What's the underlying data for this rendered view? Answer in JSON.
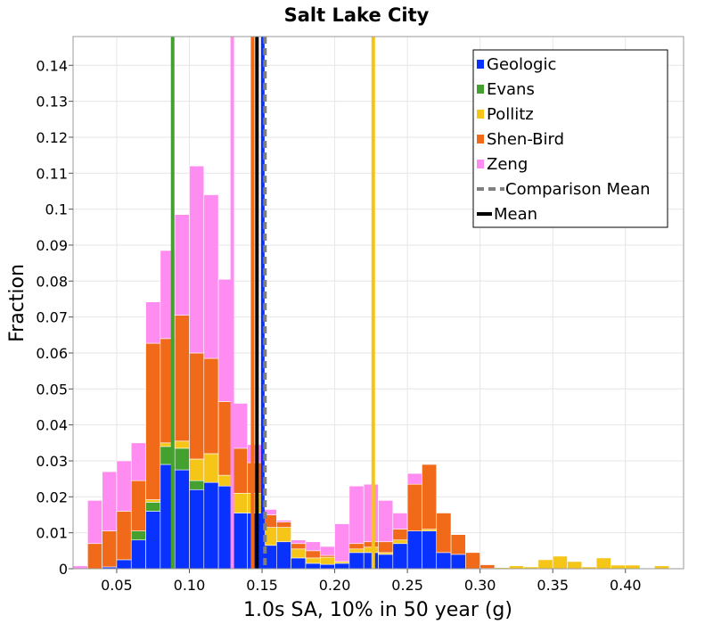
{
  "chart_data": {
    "type": "bar",
    "stacked": true,
    "title": "Salt Lake City",
    "xlabel": "1.0s SA, 10% in 50 year (g)",
    "ylabel": "Fraction",
    "xlim": [
      0.02,
      0.44
    ],
    "ylim": [
      0,
      0.148
    ],
    "grid": true,
    "legend_position": "top-right",
    "bin_width": 0.01,
    "x_ticks": [
      0.05,
      0.1,
      0.15,
      0.2,
      0.25,
      0.3,
      0.35,
      0.4
    ],
    "x_tick_labels": [
      "0.05",
      "0.10",
      "0.15",
      "0.20",
      "0.25",
      "0.30",
      "0.35",
      "0.40"
    ],
    "y_ticks": [
      0,
      0.01,
      0.02,
      0.03,
      0.04,
      0.05,
      0.06,
      0.07,
      0.08,
      0.09,
      0.1,
      0.11,
      0.12,
      0.13,
      0.14
    ],
    "y_tick_labels": [
      "0",
      "0.01",
      "0.02",
      "0.03",
      "0.04",
      "0.05",
      "0.06",
      "0.07",
      "0.08",
      "0.09",
      "0.1",
      "0.11",
      "0.12",
      "0.13",
      "0.14"
    ],
    "x": [
      0.025,
      0.035,
      0.045,
      0.055,
      0.065,
      0.075,
      0.085,
      0.095,
      0.105,
      0.115,
      0.125,
      0.135,
      0.145,
      0.155,
      0.165,
      0.175,
      0.185,
      0.195,
      0.205,
      0.215,
      0.225,
      0.235,
      0.245,
      0.255,
      0.265,
      0.275,
      0.285,
      0.295,
      0.305,
      0.315,
      0.325,
      0.335,
      0.345,
      0.355,
      0.365,
      0.375,
      0.385,
      0.395,
      0.405,
      0.415,
      0.425,
      0.435
    ],
    "series": [
      {
        "name": "Geologic",
        "color": "#0a32ff",
        "values": [
          0,
          0,
          0.0005,
          0.0025,
          0.008,
          0.016,
          0.029,
          0.0275,
          0.022,
          0.024,
          0.023,
          0.0155,
          0.0155,
          0.0065,
          0.0075,
          0.003,
          0.0015,
          0.0012,
          0.0015,
          0.0045,
          0.0045,
          0.004,
          0.007,
          0.0105,
          0.0105,
          0.0045,
          0.004,
          0,
          0,
          0,
          0,
          0,
          0,
          0,
          0,
          0,
          0,
          0,
          0,
          0,
          0,
          0
        ]
      },
      {
        "name": "Evans",
        "color": "#44a12f",
        "values": [
          0,
          0,
          0,
          0,
          0.0025,
          0.0025,
          0.005,
          0.006,
          0.0025,
          0,
          0,
          0,
          0,
          0,
          0,
          0,
          0,
          0,
          0,
          0,
          0,
          0,
          0,
          0,
          0,
          0,
          0,
          0,
          0,
          0,
          0,
          0,
          0,
          0,
          0,
          0,
          0,
          0,
          0,
          0,
          0,
          0
        ]
      },
      {
        "name": "Pollitz",
        "color": "#f5c518",
        "values": [
          0,
          0,
          0,
          0,
          0,
          0.0007,
          0.001,
          0.002,
          0.006,
          0.008,
          0.003,
          0.0055,
          0.0055,
          0.005,
          0.004,
          0.0025,
          0.0015,
          0.002,
          0.0005,
          0.001,
          0.0015,
          0.0005,
          0.001,
          0,
          0.0005,
          0,
          0,
          0,
          0.0001,
          0.0003,
          0.0008,
          0.0005,
          0.0025,
          0.0035,
          0.002,
          0.0005,
          0.003,
          0.001,
          0.001,
          0,
          0.0008,
          0.0002
        ]
      },
      {
        "name": "Shen-Bird",
        "color": "#f06a1a",
        "values": [
          0,
          0.007,
          0.01,
          0.0135,
          0.014,
          0.0435,
          0.029,
          0.035,
          0.0295,
          0.0265,
          0.0205,
          0.0125,
          0.0085,
          0.0035,
          0.0015,
          0.0015,
          0.002,
          0.0005,
          0,
          0.0015,
          0.0015,
          0.003,
          0.003,
          0.013,
          0.018,
          0.011,
          0.0055,
          0.0045,
          0.001,
          0,
          0,
          0,
          0,
          0,
          0,
          0,
          0,
          0,
          0,
          0,
          0,
          0
        ]
      },
      {
        "name": "Zeng",
        "color": "#ff8cf0",
        "values": [
          0.0008,
          0.012,
          0.0165,
          0.014,
          0.0105,
          0.0115,
          0.0245,
          0.028,
          0.052,
          0.0455,
          0.034,
          0.0125,
          0.005,
          0.0015,
          0.0005,
          0.001,
          0.0025,
          0.0025,
          0.0105,
          0.016,
          0.016,
          0.0115,
          0.0045,
          0.003,
          0,
          0,
          0,
          0,
          0,
          0,
          0,
          0,
          0,
          0,
          0,
          0,
          0,
          0,
          0,
          0,
          0,
          0
        ]
      }
    ],
    "vlines": [
      {
        "name": "Evans",
        "x": 0.0885,
        "color": "#44a12f",
        "style": "solid"
      },
      {
        "name": "Zeng",
        "x": 0.1295,
        "color": "#ff8cf0",
        "style": "solid"
      },
      {
        "name": "Shen-Bird",
        "x": 0.1435,
        "color": "#f06a1a",
        "style": "solid"
      },
      {
        "name": "Mean",
        "x": 0.1465,
        "color": "#000000",
        "style": "solid"
      },
      {
        "name": "Geologic",
        "x": 0.1505,
        "color": "#0a32ff",
        "style": "solid"
      },
      {
        "name": "Comparison Mean",
        "x": 0.152,
        "color": "#808080",
        "style": "dashed"
      },
      {
        "name": "Pollitz",
        "x": 0.2265,
        "color": "#f5c518",
        "style": "solid"
      }
    ],
    "legend": [
      {
        "label": "Geologic",
        "color": "#0a32ff",
        "symbol": "box"
      },
      {
        "label": "Evans",
        "color": "#44a12f",
        "symbol": "box"
      },
      {
        "label": "Pollitz",
        "color": "#f5c518",
        "symbol": "box"
      },
      {
        "label": "Shen-Bird",
        "color": "#f06a1a",
        "symbol": "box"
      },
      {
        "label": "Zeng",
        "color": "#ff8cf0",
        "symbol": "box"
      },
      {
        "label": "Comparison Mean",
        "color": "#808080",
        "symbol": "dashed-line"
      },
      {
        "label": "Mean",
        "color": "#000000",
        "symbol": "line"
      }
    ]
  }
}
